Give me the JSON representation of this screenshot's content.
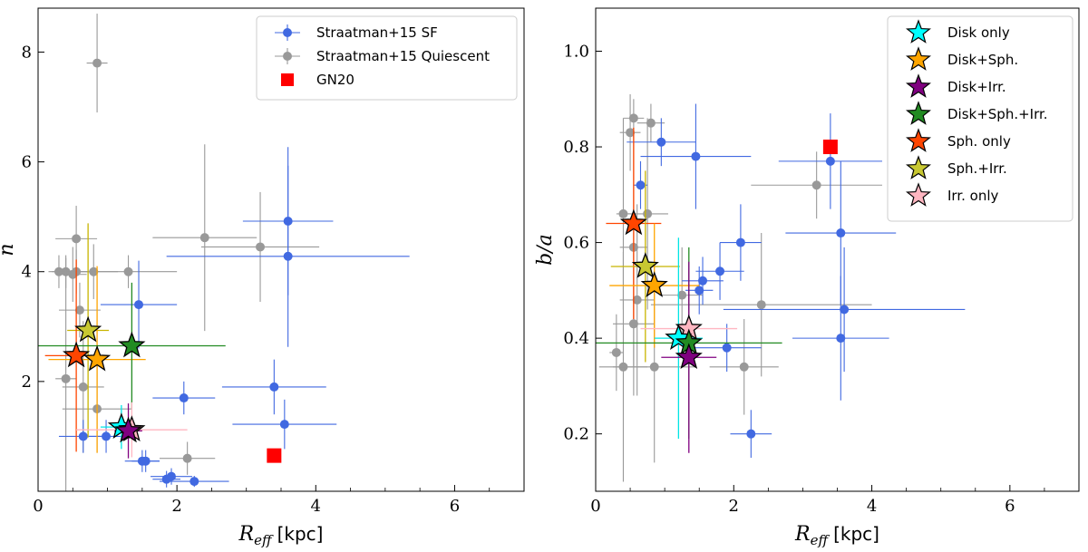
{
  "figure_title": "",
  "chart_data": [
    {
      "type": "scatter",
      "panel": "left",
      "title": "",
      "xlabel": "R_eff [kpc]",
      "xlabel_main": "R",
      "xlabel_sub": "eff",
      "xlabel_unit": "[kpc]",
      "ylabel": "n",
      "xlim": [
        0,
        7
      ],
      "ylim": [
        0,
        8.8
      ],
      "xticks": [
        0,
        2,
        4,
        6
      ],
      "yticks": [
        2,
        4,
        6,
        8
      ],
      "grid": false,
      "legend_position": "top-right",
      "legend": [
        {
          "label": "Straatman+15 SF",
          "marker": "circle-err",
          "color": "#4169e1"
        },
        {
          "label": "Straatman+15 Quiescent",
          "marker": "circle-err",
          "color": "#999999"
        },
        {
          "label": "GN20",
          "marker": "square",
          "color": "#ff0000"
        }
      ],
      "series": [
        {
          "name": "Straatman+15 Quiescent",
          "color": "#999999",
          "points": [
            {
              "x": 0.85,
              "y": 7.8,
              "xerr": 0.15,
              "yerr": 0.9
            },
            {
              "x": 0.3,
              "y": 4.0,
              "xerr": 0.15,
              "yerr": 0.3
            },
            {
              "x": 0.4,
              "y": 4.0,
              "xerr": 0.2,
              "yerr": 0.3
            },
            {
              "x": 0.5,
              "y": 3.95,
              "xerr": 0.2,
              "yerr": 0.5
            },
            {
              "x": 0.55,
              "y": 4.0,
              "xerr": 0.3,
              "yerr": 0.4
            },
            {
              "x": 0.55,
              "y": 4.6,
              "xerr": 0.3,
              "yerr": 0.6
            },
            {
              "x": 0.8,
              "y": 4.0,
              "xerr": 0.35,
              "yerr": 0.5
            },
            {
              "x": 1.3,
              "y": 4.0,
              "xerr": 0.7,
              "yerr": 0.3
            },
            {
              "x": 0.6,
              "y": 3.3,
              "xerr": 0.3,
              "yerr": 0.5
            },
            {
              "x": 0.4,
              "y": 2.05,
              "xerr": 0.15,
              "yerr": 2.2
            },
            {
              "x": 0.65,
              "y": 1.9,
              "xerr": 0.3,
              "yerr": 1.2
            },
            {
              "x": 0.85,
              "y": 1.5,
              "xerr": 0.5,
              "yerr": 0.8
            },
            {
              "x": 2.4,
              "y": 4.62,
              "xerr": 0.75,
              "yerr": 1.7
            },
            {
              "x": 3.2,
              "y": 4.45,
              "xerr": 0.85,
              "yerr": 1.0
            },
            {
              "x": 2.15,
              "y": 0.6,
              "xerr": 0.4,
              "yerr": 0.3
            }
          ]
        },
        {
          "name": "Straatman+15 SF",
          "color": "#4169e1",
          "points": [
            {
              "x": 3.6,
              "y": 4.92,
              "xerr": 0.65,
              "yerr": 1.35
            },
            {
              "x": 3.6,
              "y": 4.28,
              "xerr": 1.75,
              "yerr": 1.65
            },
            {
              "x": 1.45,
              "y": 3.4,
              "xerr": 0.55,
              "yerr": 0.8
            },
            {
              "x": 3.4,
              "y": 1.9,
              "xerr": 0.75,
              "yerr": 0.5
            },
            {
              "x": 2.1,
              "y": 1.7,
              "xerr": 0.45,
              "yerr": 0.3
            },
            {
              "x": 3.55,
              "y": 1.22,
              "xerr": 0.75,
              "yerr": 0.45
            },
            {
              "x": 0.65,
              "y": 1.0,
              "xerr": 0.35,
              "yerr": 0.3
            },
            {
              "x": 0.98,
              "y": 1.0,
              "xerr": 0.3,
              "yerr": 0.3
            },
            {
              "x": 1.5,
              "y": 0.55,
              "xerr": 0.25,
              "yerr": 0.2
            },
            {
              "x": 1.55,
              "y": 0.55,
              "xerr": 0.2,
              "yerr": 0.2
            },
            {
              "x": 1.85,
              "y": 0.22,
              "xerr": 0.2,
              "yerr": 0.15
            },
            {
              "x": 1.92,
              "y": 0.27,
              "xerr": 0.3,
              "yerr": 0.15
            },
            {
              "x": 2.25,
              "y": 0.18,
              "xerr": 0.5,
              "yerr": 0.1
            }
          ]
        },
        {
          "name": "GN20",
          "color": "#ff0000",
          "marker": "square",
          "points": [
            {
              "x": 3.4,
              "y": 0.65
            }
          ]
        },
        {
          "name": "Stacks",
          "marker": "star",
          "points": [
            {
              "label": "Sph.+Irr.",
              "color": "#c8c832",
              "x": 0.72,
              "y": 2.93,
              "xerr": 0.3,
              "yerr": 1.95,
              "bar_color": "#c8b400"
            },
            {
              "label": "Sph. only",
              "color": "#ff4500",
              "x": 0.55,
              "y": 2.47,
              "xerr": 0.45,
              "yerr": 1.75,
              "bar_color": "#ff4500"
            },
            {
              "label": "Disk+Sph.",
              "color": "#ffa500",
              "x": 0.85,
              "y": 2.4,
              "xerr": 0.7,
              "yerr": 1.7,
              "bar_color": "#ffa500"
            },
            {
              "label": "Disk+Sph.+Irr.",
              "color": "#228b22",
              "x": 1.35,
              "y": 2.65,
              "xerr": 1.35,
              "yerr": 1.15,
              "bar_color": "#228b22"
            },
            {
              "label": "Disk only",
              "color": "#00ffff",
              "x": 1.2,
              "y": 1.17,
              "xerr": 0.3,
              "yerr": 0.4,
              "bar_color": "#00e5e5"
            },
            {
              "label": "Irr. only",
              "color": "#ffb6c1",
              "x": 1.35,
              "y": 1.12,
              "xerr": 0.8,
              "yerr": 0.5,
              "bar_color": "#ffb6c1"
            },
            {
              "label": "Disk+Irr.",
              "color": "#800080",
              "x": 1.3,
              "y": 1.1,
              "xerr": 0.2,
              "yerr": 0.5,
              "bar_color": "#800080"
            }
          ]
        }
      ]
    },
    {
      "type": "scatter",
      "panel": "right",
      "title": "",
      "xlabel": "R_eff [kpc]",
      "xlabel_main": "R",
      "xlabel_sub": "eff",
      "xlabel_unit": "[kpc]",
      "ylabel": "b/a",
      "xlim": [
        0,
        7
      ],
      "ylim": [
        0.08,
        1.09
      ],
      "xticks": [
        0,
        2,
        4,
        6
      ],
      "yticks": [
        0.2,
        0.4,
        0.6,
        0.8,
        1.0
      ],
      "yticklabels": [
        "0.2",
        "0.4",
        "0.6",
        "0.8",
        "1.0"
      ],
      "grid": false,
      "legend_position": "top-right",
      "legend": [
        {
          "label": "Disk only",
          "marker": "star",
          "color": "#00ffff"
        },
        {
          "label": "Disk+Sph.",
          "marker": "star",
          "color": "#ffa500"
        },
        {
          "label": "Disk+Irr.",
          "marker": "star",
          "color": "#800080"
        },
        {
          "label": "Disk+Sph.+Irr.",
          "marker": "star",
          "color": "#228b22"
        },
        {
          "label": "Sph. only",
          "marker": "star",
          "color": "#ff4500"
        },
        {
          "label": "Sph.+Irr.",
          "marker": "star",
          "color": "#c8c832"
        },
        {
          "label": "Irr. only",
          "marker": "star",
          "color": "#ffb6c1"
        }
      ],
      "series": [
        {
          "name": "Straatman+15 Quiescent",
          "color": "#999999",
          "points": [
            {
              "x": 0.55,
              "y": 0.86,
              "xerr": 0.15,
              "yerr": 0.04
            },
            {
              "x": 0.5,
              "y": 0.83,
              "xerr": 0.15,
              "yerr": 0.08
            },
            {
              "x": 0.8,
              "y": 0.85,
              "xerr": 0.2,
              "yerr": 0.04
            },
            {
              "x": 0.4,
              "y": 0.66,
              "xerr": 0.1,
              "yerr": 0.2
            },
            {
              "x": 0.55,
              "y": 0.59,
              "xerr": 0.2,
              "yerr": 0.25
            },
            {
              "x": 0.75,
              "y": 0.66,
              "xerr": 0.3,
              "yerr": 0.2
            },
            {
              "x": 0.6,
              "y": 0.48,
              "xerr": 0.25,
              "yerr": 0.2
            },
            {
              "x": 0.55,
              "y": 0.43,
              "xerr": 0.3,
              "yerr": 0.15
            },
            {
              "x": 0.3,
              "y": 0.37,
              "xerr": 0.1,
              "yerr": 0.08
            },
            {
              "x": 0.4,
              "y": 0.34,
              "xerr": 0.35,
              "yerr": 0.24
            },
            {
              "x": 0.85,
              "y": 0.34,
              "xerr": 0.6,
              "yerr": 0.2
            },
            {
              "x": 1.25,
              "y": 0.49,
              "xerr": 0.3,
              "yerr": 0.1
            },
            {
              "x": 2.4,
              "y": 0.47,
              "xerr": 1.6,
              "yerr": 0.15
            },
            {
              "x": 2.15,
              "y": 0.34,
              "xerr": 0.5,
              "yerr": 0.1
            },
            {
              "x": 3.2,
              "y": 0.72,
              "xerr": 0.95,
              "yerr": 0.07
            }
          ]
        },
        {
          "name": "Straatman+15 SF",
          "color": "#4169e1",
          "points": [
            {
              "x": 0.65,
              "y": 0.72,
              "xerr": 0.1,
              "yerr": 0.05
            },
            {
              "x": 0.95,
              "y": 0.81,
              "xerr": 0.5,
              "yerr": 0.05
            },
            {
              "x": 1.45,
              "y": 0.78,
              "xerr": 0.8,
              "yerr": 0.11
            },
            {
              "x": 3.4,
              "y": 0.77,
              "xerr": 0.75,
              "yerr": 0.1
            },
            {
              "x": 3.55,
              "y": 0.62,
              "xerr": 0.8,
              "yerr": 0.15
            },
            {
              "x": 2.1,
              "y": 0.6,
              "xerr": 0.3,
              "yerr": 0.08
            },
            {
              "x": 1.8,
              "y": 0.54,
              "xerr": 0.35,
              "yerr": 0.06
            },
            {
              "x": 1.55,
              "y": 0.52,
              "xerr": 0.3,
              "yerr": 0.05
            },
            {
              "x": 1.5,
              "y": 0.5,
              "xerr": 0.2,
              "yerr": 0.05
            },
            {
              "x": 3.6,
              "y": 0.46,
              "xerr": 1.75,
              "yerr": 0.13
            },
            {
              "x": 3.55,
              "y": 0.4,
              "xerr": 0.7,
              "yerr": 0.13
            },
            {
              "x": 1.9,
              "y": 0.38,
              "xerr": 0.5,
              "yerr": 0.05
            },
            {
              "x": 2.25,
              "y": 0.2,
              "xerr": 0.3,
              "yerr": 0.05
            }
          ]
        },
        {
          "name": "GN20",
          "color": "#ff0000",
          "marker": "square",
          "points": [
            {
              "x": 3.4,
              "y": 0.8
            }
          ]
        },
        {
          "name": "Stacks",
          "marker": "star",
          "points": [
            {
              "label": "Sph. only",
              "color": "#ff4500",
              "x": 0.55,
              "y": 0.64,
              "xerr": 0.4,
              "yerr": 0.2,
              "bar_color": "#ff4500"
            },
            {
              "label": "Sph.+Irr.",
              "color": "#c8c832",
              "x": 0.72,
              "y": 0.55,
              "xerr": 0.5,
              "yerr": 0.2,
              "bar_color": "#c8b400"
            },
            {
              "label": "Disk+Sph.",
              "color": "#ffa500",
              "x": 0.85,
              "y": 0.51,
              "xerr": 0.65,
              "yerr": 0.13,
              "bar_color": "#ffa500"
            },
            {
              "label": "Irr. only",
              "color": "#ffb6c1",
              "x": 1.35,
              "y": 0.42,
              "xerr": 0.7,
              "yerr": 0.12,
              "bar_color": "#ffb6c1"
            },
            {
              "label": "Disk only",
              "color": "#00ffff",
              "x": 1.2,
              "y": 0.4,
              "xerr": 0.35,
              "yerr": 0.21,
              "bar_color": "#00e5e5"
            },
            {
              "label": "Disk+Sph.+Irr.",
              "color": "#228b22",
              "x": 1.35,
              "y": 0.39,
              "xerr": 1.35,
              "yerr": 0.2,
              "bar_color": "#228b22"
            },
            {
              "label": "Disk+Irr.",
              "color": "#800080",
              "x": 1.35,
              "y": 0.36,
              "xerr": 0.4,
              "yerr": 0.2,
              "bar_color": "#800080"
            }
          ]
        }
      ]
    }
  ]
}
